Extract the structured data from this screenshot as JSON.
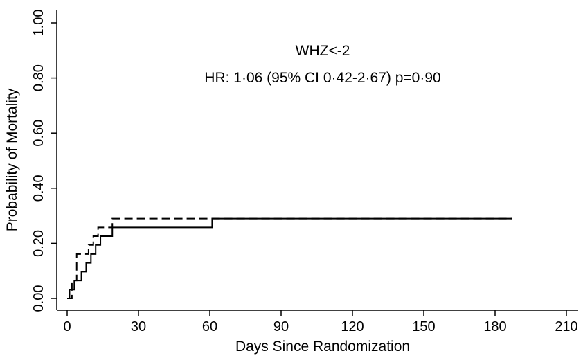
{
  "chart_data": {
    "type": "line",
    "title": "",
    "xlabel": "Days Since Randomization",
    "ylabel": "Probability of Mortality",
    "xlim": [
      0,
      210
    ],
    "ylim": [
      0,
      1
    ],
    "x_ticks": [
      0,
      30,
      60,
      90,
      120,
      150,
      180,
      210
    ],
    "x_tick_labels": [
      "0",
      "30",
      "60",
      "90",
      "120",
      "150",
      "180",
      "210"
    ],
    "y_ticks": [
      0,
      0.2,
      0.4,
      0.6,
      0.8,
      1.0
    ],
    "y_tick_labels": [
      "0.00",
      "0.20",
      "0.40",
      "0.60",
      "0.80",
      "1.00"
    ],
    "grid": false,
    "annotations": [
      "WHZ<-2",
      "HR: 1·06 (95% CI 0·42-2·67) p=0·90"
    ],
    "series": [
      {
        "style": "solid",
        "step": true,
        "x": [
          0,
          1,
          3,
          6,
          8,
          10,
          12,
          14,
          19,
          61,
          187
        ],
        "y": [
          0,
          0.032,
          0.065,
          0.097,
          0.129,
          0.161,
          0.194,
          0.226,
          0.258,
          0.29,
          0.29
        ]
      },
      {
        "style": "dashed",
        "step": true,
        "x": [
          0,
          2,
          4,
          7,
          9,
          11,
          13,
          19,
          187
        ],
        "y": [
          0,
          0.065,
          0.161,
          0.161,
          0.194,
          0.226,
          0.258,
          0.29,
          0.29
        ]
      }
    ]
  }
}
